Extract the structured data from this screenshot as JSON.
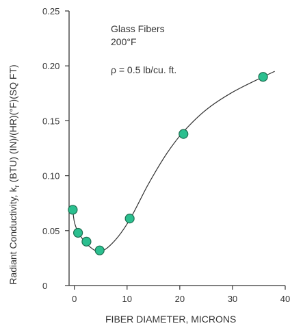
{
  "chart_data": {
    "type": "scatter",
    "xlabel": "FIBER DIAMETER, MICRONS",
    "ylabel": "Radiant Conductivity, k",
    "ylabel_subscript": "r",
    "ylabel_units": " (BTU) (IN)/(HR)(°F)(SQ FT)",
    "xlim": [
      -1,
      40
    ],
    "ylim": [
      0,
      0.25
    ],
    "x_ticks": [
      0,
      10,
      20,
      30,
      40
    ],
    "y_ticks": [
      0,
      0.05,
      0.1,
      0.15,
      0.2,
      0.25
    ],
    "x_tick_labels": [
      "0",
      "10",
      "20",
      "30",
      "40"
    ],
    "y_tick_labels": [
      "0",
      "0.05",
      "0.10",
      "0.15",
      "0.20",
      "0.25"
    ],
    "grid": false,
    "annotations": [
      "Glass Fibers",
      "200°F",
      "ρ = 0.5 lb/cu. ft."
    ],
    "series": [
      {
        "x": [
          -0.3,
          0.7,
          2.3,
          4.8,
          10.5,
          20.7,
          35.8
        ],
        "y": [
          0.069,
          0.048,
          0.04,
          0.032,
          0.061,
          0.138,
          0.19
        ],
        "marker_color": "#2bbf8f",
        "marker_edge": "#1d6e50"
      }
    ],
    "trend_curve": {
      "x": [
        -0.3,
        0.0,
        0.7,
        2.3,
        4.8,
        7.5,
        10.5,
        14.0,
        17.5,
        20.7,
        25.0,
        30.0,
        35.8,
        38.0
      ],
      "y": [
        0.069,
        0.058,
        0.049,
        0.038,
        0.031,
        0.04,
        0.06,
        0.092,
        0.12,
        0.14,
        0.16,
        0.176,
        0.19,
        0.195
      ],
      "color": "#333333"
    }
  }
}
